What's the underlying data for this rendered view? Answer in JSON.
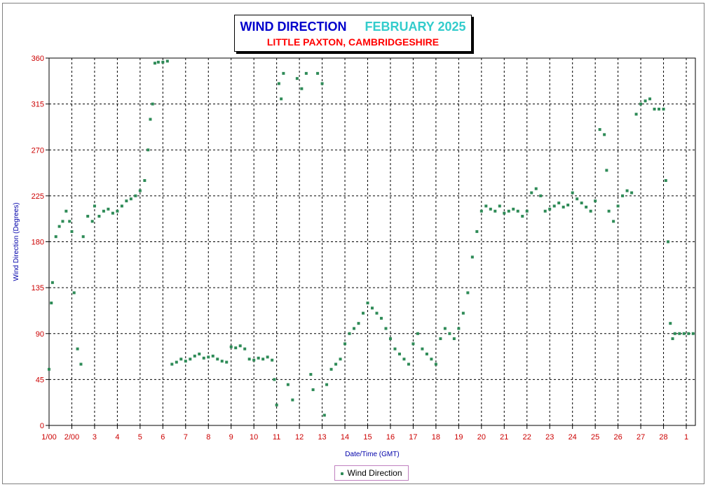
{
  "chart_data": {
    "type": "scatter",
    "title": "WIND DIRECTION",
    "period": "FEBRUARY 2025",
    "subtitle": "LITTLE PAXTON, CAMBRIDGESHIRE",
    "xlabel": "Date/Time (GMT)",
    "ylabel": "Wind Direction (Degrees)",
    "xlim": [
      1,
      29.4
    ],
    "ylim": [
      0,
      360
    ],
    "y_ticks": [
      "0",
      "45",
      "90",
      "135",
      "180",
      "225",
      "270",
      "315",
      "360"
    ],
    "x_ticks": [
      {
        "x": 1,
        "label": "1/00"
      },
      {
        "x": 2,
        "label": "2/00"
      },
      {
        "x": 3,
        "label": "3"
      },
      {
        "x": 4,
        "label": "4"
      },
      {
        "x": 5,
        "label": "5"
      },
      {
        "x": 6,
        "label": "6"
      },
      {
        "x": 7,
        "label": "7"
      },
      {
        "x": 8,
        "label": "8"
      },
      {
        "x": 9,
        "label": "9"
      },
      {
        "x": 10,
        "label": "10"
      },
      {
        "x": 11,
        "label": "11"
      },
      {
        "x": 12,
        "label": "12"
      },
      {
        "x": 13,
        "label": "13"
      },
      {
        "x": 14,
        "label": "14"
      },
      {
        "x": 15,
        "label": "15"
      },
      {
        "x": 16,
        "label": "16"
      },
      {
        "x": 17,
        "label": "17"
      },
      {
        "x": 18,
        "label": "18"
      },
      {
        "x": 19,
        "label": "19"
      },
      {
        "x": 20,
        "label": "20"
      },
      {
        "x": 21,
        "label": "21"
      },
      {
        "x": 22,
        "label": "22"
      },
      {
        "x": 23,
        "label": "23"
      },
      {
        "x": 24,
        "label": "24"
      },
      {
        "x": 25,
        "label": "25"
      },
      {
        "x": 26,
        "label": "26"
      },
      {
        "x": 27,
        "label": "27"
      },
      {
        "x": 28,
        "label": "28"
      },
      {
        "x": 29,
        "label": "1"
      }
    ],
    "grid": true,
    "legend_position": "bottom-center",
    "series": [
      {
        "name": "Wind Direction",
        "color": "#2e8b57",
        "points": [
          [
            1.0,
            55
          ],
          [
            1.1,
            120
          ],
          [
            1.15,
            140
          ],
          [
            1.3,
            185
          ],
          [
            1.45,
            195
          ],
          [
            1.6,
            200
          ],
          [
            1.75,
            210
          ],
          [
            1.9,
            200
          ],
          [
            2.0,
            190
          ],
          [
            2.1,
            130
          ],
          [
            2.25,
            75
          ],
          [
            2.4,
            60
          ],
          [
            2.5,
            185
          ],
          [
            2.7,
            205
          ],
          [
            2.9,
            200
          ],
          [
            3.0,
            215
          ],
          [
            3.2,
            205
          ],
          [
            3.4,
            210
          ],
          [
            3.6,
            212
          ],
          [
            3.8,
            208
          ],
          [
            4.0,
            210
          ],
          [
            4.2,
            215
          ],
          [
            4.4,
            220
          ],
          [
            4.6,
            222
          ],
          [
            4.8,
            225
          ],
          [
            5.0,
            230
          ],
          [
            5.2,
            240
          ],
          [
            5.35,
            270
          ],
          [
            5.45,
            300
          ],
          [
            5.55,
            315
          ],
          [
            5.65,
            355
          ],
          [
            5.8,
            356
          ],
          [
            6.0,
            356
          ],
          [
            6.2,
            357
          ],
          [
            6.4,
            60
          ],
          [
            6.6,
            62
          ],
          [
            6.8,
            65
          ],
          [
            7.0,
            63
          ],
          [
            7.2,
            65
          ],
          [
            7.4,
            68
          ],
          [
            7.6,
            70
          ],
          [
            7.8,
            66
          ],
          [
            8.0,
            67
          ],
          [
            8.2,
            68
          ],
          [
            8.4,
            65
          ],
          [
            8.6,
            63
          ],
          [
            8.8,
            62
          ],
          [
            9.0,
            77
          ],
          [
            9.2,
            76
          ],
          [
            9.4,
            78
          ],
          [
            9.6,
            75
          ],
          [
            9.8,
            65
          ],
          [
            10.0,
            64
          ],
          [
            10.2,
            66
          ],
          [
            10.4,
            65
          ],
          [
            10.6,
            67
          ],
          [
            10.8,
            64
          ],
          [
            10.9,
            45
          ],
          [
            11.0,
            20
          ],
          [
            11.1,
            335
          ],
          [
            11.2,
            320
          ],
          [
            11.3,
            345
          ],
          [
            11.5,
            40
          ],
          [
            11.7,
            25
          ],
          [
            11.9,
            340
          ],
          [
            12.1,
            330
          ],
          [
            12.3,
            345
          ],
          [
            12.5,
            50
          ],
          [
            12.6,
            35
          ],
          [
            12.8,
            345
          ],
          [
            13.0,
            335
          ],
          [
            13.1,
            10
          ],
          [
            13.2,
            40
          ],
          [
            13.4,
            55
          ],
          [
            13.6,
            60
          ],
          [
            13.8,
            65
          ],
          [
            14.0,
            80
          ],
          [
            14.2,
            90
          ],
          [
            14.4,
            95
          ],
          [
            14.6,
            100
          ],
          [
            14.8,
            110
          ],
          [
            15.0,
            120
          ],
          [
            15.2,
            115
          ],
          [
            15.4,
            110
          ],
          [
            15.6,
            105
          ],
          [
            15.8,
            95
          ],
          [
            16.0,
            85
          ],
          [
            16.2,
            75
          ],
          [
            16.4,
            70
          ],
          [
            16.6,
            65
          ],
          [
            16.8,
            60
          ],
          [
            17.0,
            80
          ],
          [
            17.2,
            90
          ],
          [
            17.4,
            75
          ],
          [
            17.6,
            70
          ],
          [
            17.8,
            65
          ],
          [
            18.0,
            60
          ],
          [
            18.2,
            85
          ],
          [
            18.4,
            95
          ],
          [
            18.6,
            90
          ],
          [
            18.8,
            85
          ],
          [
            19.0,
            95
          ],
          [
            19.2,
            110
          ],
          [
            19.4,
            130
          ],
          [
            19.6,
            165
          ],
          [
            19.8,
            190
          ],
          [
            20.0,
            210
          ],
          [
            20.2,
            215
          ],
          [
            20.4,
            212
          ],
          [
            20.6,
            210
          ],
          [
            20.8,
            215
          ],
          [
            21.0,
            208
          ],
          [
            21.2,
            210
          ],
          [
            21.4,
            212
          ],
          [
            21.6,
            210
          ],
          [
            21.8,
            205
          ],
          [
            22.0,
            210
          ],
          [
            22.2,
            228
          ],
          [
            22.4,
            232
          ],
          [
            22.6,
            225
          ],
          [
            22.8,
            210
          ],
          [
            23.0,
            212
          ],
          [
            23.2,
            215
          ],
          [
            23.4,
            218
          ],
          [
            23.6,
            214
          ],
          [
            23.8,
            216
          ],
          [
            24.0,
            228
          ],
          [
            24.2,
            222
          ],
          [
            24.4,
            218
          ],
          [
            24.6,
            214
          ],
          [
            24.8,
            210
          ],
          [
            25.0,
            220
          ],
          [
            25.2,
            290
          ],
          [
            25.4,
            285
          ],
          [
            25.5,
            250
          ],
          [
            25.6,
            210
          ],
          [
            25.8,
            200
          ],
          [
            26.0,
            215
          ],
          [
            26.2,
            225
          ],
          [
            26.4,
            230
          ],
          [
            26.6,
            228
          ],
          [
            26.8,
            305
          ],
          [
            27.0,
            315
          ],
          [
            27.2,
            318
          ],
          [
            27.4,
            320
          ],
          [
            27.6,
            310
          ],
          [
            27.8,
            310
          ],
          [
            28.0,
            310
          ],
          [
            28.1,
            240
          ],
          [
            28.2,
            180
          ],
          [
            28.3,
            100
          ],
          [
            28.4,
            85
          ],
          [
            28.5,
            90
          ],
          [
            28.7,
            90
          ],
          [
            28.9,
            90
          ],
          [
            29.1,
            90
          ],
          [
            29.3,
            90
          ]
        ]
      }
    ]
  }
}
